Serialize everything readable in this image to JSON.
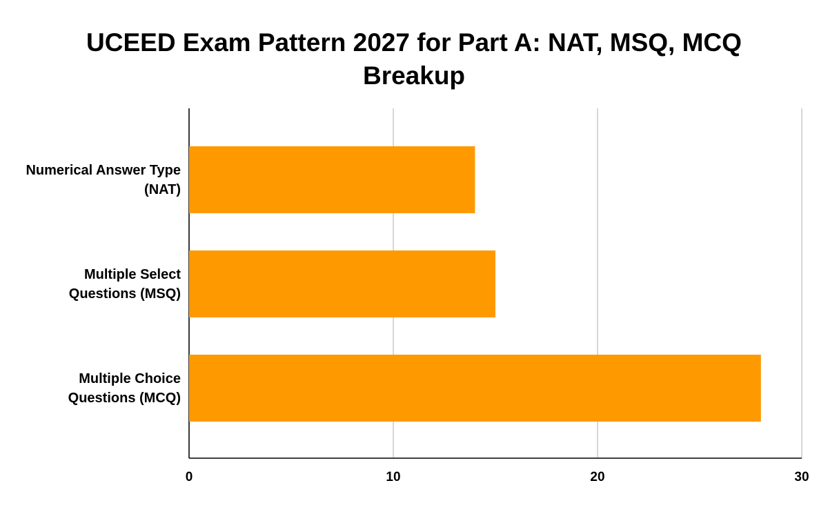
{
  "chart_data": {
    "type": "bar",
    "orientation": "horizontal",
    "title": "UCEED Exam Pattern 2027 for Part A: NAT, MSQ, MCQ Breakup",
    "categories": [
      "Numerical Answer Type (NAT)",
      "Multiple Select Questions (MSQ)",
      "Multiple Choice Questions (MCQ)"
    ],
    "values": [
      14,
      15,
      28
    ],
    "color": "#ff9900",
    "xlim": [
      0,
      30
    ],
    "xticks": [
      0,
      10,
      20,
      30
    ],
    "grid": true
  }
}
